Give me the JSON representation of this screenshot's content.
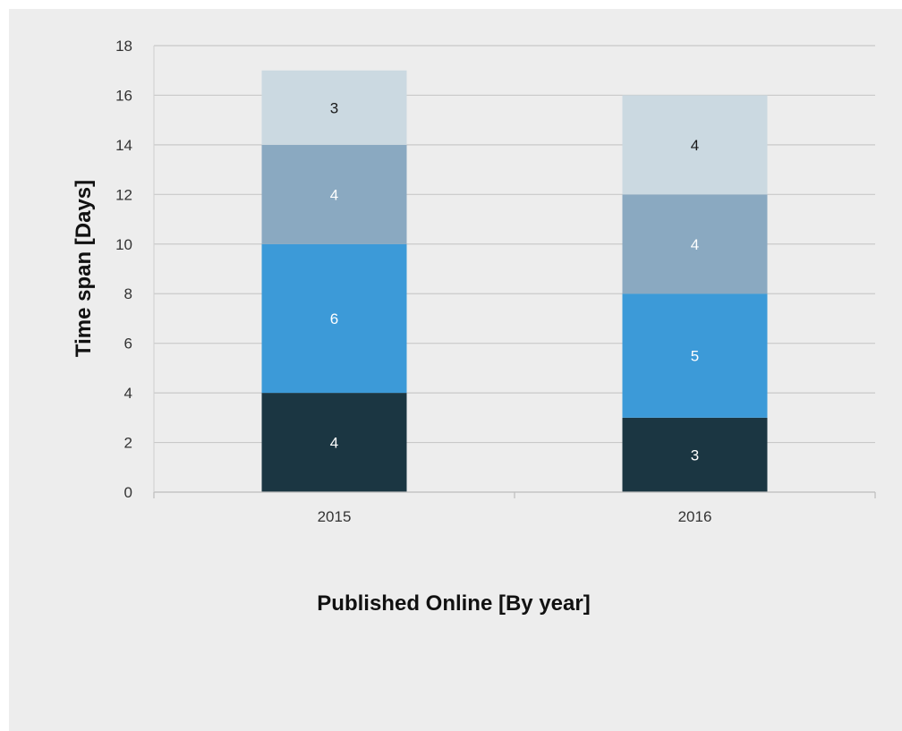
{
  "chart_data": {
    "type": "bar",
    "stacked": true,
    "categories": [
      "2015",
      "2016"
    ],
    "series": [
      {
        "values": [
          4,
          3
        ],
        "color": "#1b3642",
        "label_color": "#ffffff"
      },
      {
        "values": [
          6,
          5
        ],
        "color": "#3c9ad8",
        "label_color": "#ffffff"
      },
      {
        "values": [
          4,
          4
        ],
        "color": "#8aa9c1",
        "label_color": "#ffffff"
      },
      {
        "values": [
          3,
          4
        ],
        "color": "#cbd9e1",
        "label_color": "#1a1a1a"
      }
    ],
    "title": "",
    "xlabel": "Published Online [By year]",
    "ylabel": "Time  span  [Days]",
    "ylim": [
      0,
      18
    ],
    "yticks": [
      0,
      2,
      4,
      6,
      8,
      10,
      12,
      14,
      16,
      18
    ],
    "grid": true,
    "legend": "none",
    "background": "#ededed",
    "grid_color": "#c9c9c9"
  }
}
